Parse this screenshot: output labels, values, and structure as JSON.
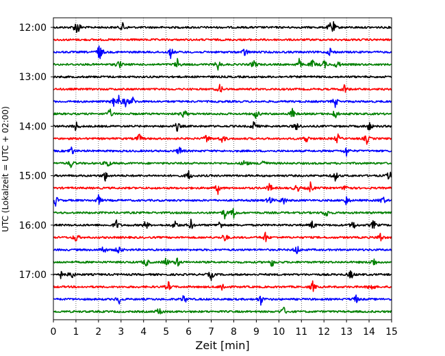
{
  "chart_data": {
    "type": "line",
    "title": "",
    "xlabel": "Zeit  [min]",
    "ylabel": "UTC (Lokalzeit = UTC + 02:00)",
    "xlim": [
      0,
      15
    ],
    "x_ticks": [
      0,
      1,
      2,
      3,
      4,
      5,
      6,
      7,
      8,
      9,
      10,
      11,
      12,
      13,
      14,
      15
    ],
    "y_ticks": [
      "12:00",
      "13:00",
      "14:00",
      "15:00",
      "16:00",
      "17:00"
    ],
    "grid_x": true,
    "grid_style": "dotted",
    "trace_colors": [
      "#000000",
      "#ff0000",
      "#0000ff",
      "#008000"
    ],
    "minutes_per_trace": 15,
    "traces": [
      {
        "start": "12:00",
        "events": [
          1.0,
          1.1,
          3.1,
          12.3,
          12.4
        ]
      },
      {
        "start": "12:15",
        "events": []
      },
      {
        "start": "12:30",
        "events": [
          2.0,
          2.1,
          5.2,
          8.5,
          12.3
        ]
      },
      {
        "start": "12:45",
        "events": [
          2.9,
          5.5,
          7.3,
          8.9,
          10.9,
          11.5,
          12.0,
          12.6
        ]
      },
      {
        "start": "13:00",
        "events": []
      },
      {
        "start": "13:15",
        "events": [
          7.4,
          12.9
        ]
      },
      {
        "start": "13:30",
        "events": [
          2.7,
          2.9,
          3.2,
          3.5,
          12.5
        ]
      },
      {
        "start": "13:45",
        "events": [
          2.5,
          5.8,
          9.0,
          10.6,
          12.5
        ]
      },
      {
        "start": "14:00",
        "events": [
          1.0,
          5.5,
          8.9,
          10.8,
          14.0
        ]
      },
      {
        "start": "14:15",
        "events": [
          3.8,
          6.8,
          7.5,
          11.2,
          12.6,
          13.9
        ]
      },
      {
        "start": "14:30",
        "events": [
          0.8,
          5.6,
          13.0
        ]
      },
      {
        "start": "14:45",
        "events": [
          0.8,
          2.4,
          8.5,
          9.3
        ]
      },
      {
        "start": "15:00",
        "events": [
          2.3,
          6.0,
          12.5,
          14.9
        ]
      },
      {
        "start": "15:15",
        "events": [
          7.3,
          9.6,
          10.8,
          11.4,
          13.0
        ]
      },
      {
        "start": "15:30",
        "events": [
          0.1,
          2.0,
          9.6,
          10.2,
          13.0,
          14.6
        ]
      },
      {
        "start": "15:45",
        "events": [
          7.6,
          8.0,
          12.1
        ]
      },
      {
        "start": "16:00",
        "events": [
          2.8,
          4.1,
          5.4,
          6.1,
          7.4,
          11.5,
          13.3,
          14.2
        ]
      },
      {
        "start": "16:15",
        "events": [
          1.0,
          7.6,
          9.4,
          14.5
        ]
      },
      {
        "start": "16:30",
        "events": [
          2.2,
          2.9,
          10.8
        ]
      },
      {
        "start": "16:45",
        "events": [
          4.1,
          5.0,
          5.5,
          9.7,
          14.2
        ]
      },
      {
        "start": "17:00",
        "events": [
          0.3,
          0.8,
          7.0,
          13.2
        ]
      },
      {
        "start": "17:15",
        "events": [
          5.1,
          7.5,
          11.5,
          14.1
        ]
      },
      {
        "start": "17:30",
        "events": [
          2.9,
          5.8,
          9.2,
          13.4
        ]
      },
      {
        "start": "17:45",
        "events": [
          4.7,
          10.2
        ]
      }
    ]
  }
}
